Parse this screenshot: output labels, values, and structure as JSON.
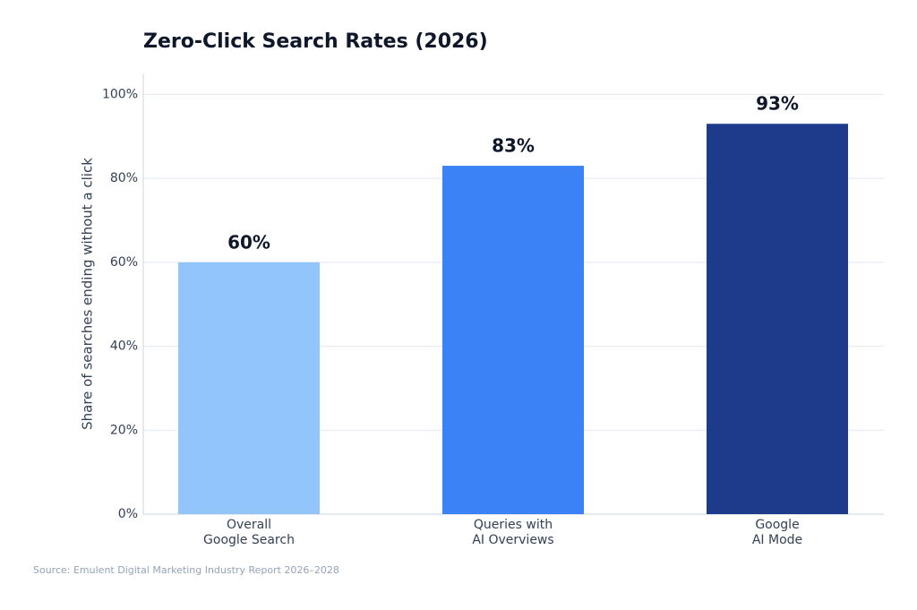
{
  "chart_data": {
    "type": "bar",
    "title": "Zero-Click Search Rates (2026)",
    "y_label": "Share of searches ending without a click",
    "source": "Source: Emulent Digital Marketing Industry Report 2026–2028",
    "categories": [
      "Overall\nGoogle Search",
      "Queries with\nAI Overviews",
      "Google\nAI Mode"
    ],
    "values": [
      60,
      83,
      93
    ],
    "value_labels": [
      "60%",
      "83%",
      "93%"
    ],
    "colors": [
      "#93c5fd",
      "#3b82f6",
      "#1e3a8a"
    ],
    "ylim": [
      0,
      105
    ],
    "yticks": [
      {
        "value": 0,
        "label": "0%"
      },
      {
        "value": 20,
        "label": "20%"
      },
      {
        "value": 40,
        "label": "40%"
      },
      {
        "value": 60,
        "label": "60%"
      },
      {
        "value": 80,
        "label": "80%"
      },
      {
        "value": 100,
        "label": "100%"
      }
    ],
    "grid": true
  }
}
